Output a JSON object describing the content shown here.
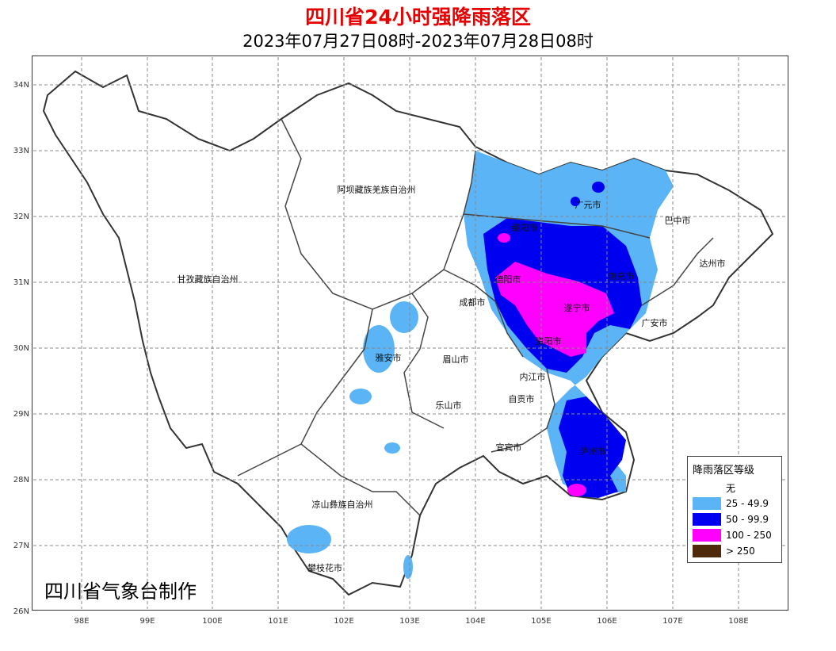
{
  "title": "四川省24小时强降雨落区",
  "subtitle": "2023年07月27日08时-2023年07月28日08时",
  "credit": "四川省气象台制作",
  "colors": {
    "title": "#e60000",
    "level_1": "#5ab4f5",
    "level_2": "#0000f0",
    "level_3": "#ff00ff",
    "level_4": "#4f2a0a",
    "none": "#ffffff"
  },
  "axes": {
    "lon_ticks": [
      "98E",
      "99E",
      "100E",
      "101E",
      "102E",
      "103E",
      "104E",
      "105E",
      "106E",
      "107E",
      "108E"
    ],
    "lat_ticks": [
      "34N",
      "33N",
      "32N",
      "31N",
      "30N",
      "29N",
      "28N",
      "27N",
      "26N"
    ],
    "grid": true
  },
  "legend": {
    "title": "降雨落区等级",
    "items": [
      {
        "label": "无",
        "color": "#ffffff"
      },
      {
        "label": "25 - 49.9",
        "color": "#5ab4f5"
      },
      {
        "label": "50 - 99.9",
        "color": "#0000f0"
      },
      {
        "label": "100 - 250",
        "color": "#ff00ff"
      },
      {
        "label": "> 250",
        "color": "#4f2a0a"
      }
    ]
  },
  "places": [
    "阿坝藏族羌族自治州",
    "甘孜藏族自治州",
    "凉山彝族自治州",
    "攀枝花市",
    "雅安市",
    "眉山市",
    "乐山市",
    "成都市",
    "德阳市",
    "绵阳市",
    "广元市",
    "巴中市",
    "达州市",
    "南充市",
    "遂宁市",
    "资阳市",
    "内江市",
    "自贡市",
    "宜宾市",
    "泸州市",
    "广安市"
  ]
}
